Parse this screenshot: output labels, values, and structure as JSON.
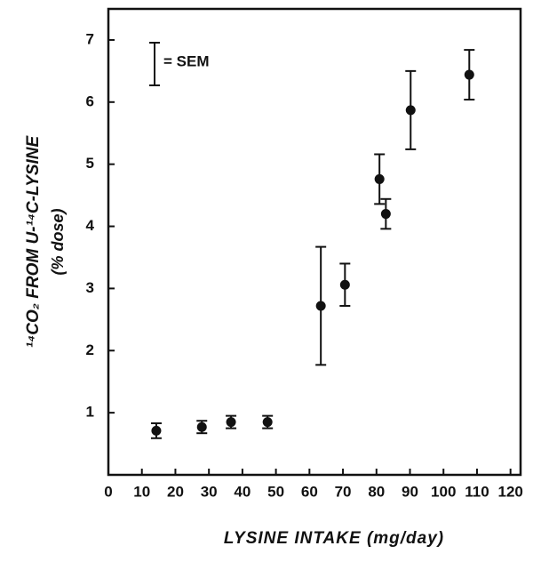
{
  "chart_data": {
    "type": "scatter",
    "xlabel": "LYSINE INTAKE (mg/day)",
    "ylabel": "¹⁴CO₂ FROM U-¹⁴C-LYSINE",
    "ylabel2": "(% dose)",
    "legend_label": "= SEM",
    "xlim": [
      0,
      123
    ],
    "xticks": [
      0,
      10,
      20,
      30,
      40,
      50,
      60,
      70,
      80,
      90,
      100,
      110,
      120
    ],
    "ylim": [
      0,
      7.5
    ],
    "yticks": [
      1,
      2,
      3,
      4,
      5,
      6,
      7
    ],
    "color": "#111111",
    "x": [
      14.3,
      27.9,
      36.6,
      47.5,
      63.4,
      70.6,
      80.9,
      82.8,
      90.2,
      107.7
    ],
    "values": [
      0.71,
      0.77,
      0.85,
      0.85,
      2.72,
      3.06,
      4.76,
      4.2,
      5.87,
      6.44
    ],
    "errors": [
      0.12,
      0.1,
      0.1,
      0.1,
      0.95,
      0.34,
      0.4,
      0.24,
      0.63,
      0.4
    ]
  }
}
